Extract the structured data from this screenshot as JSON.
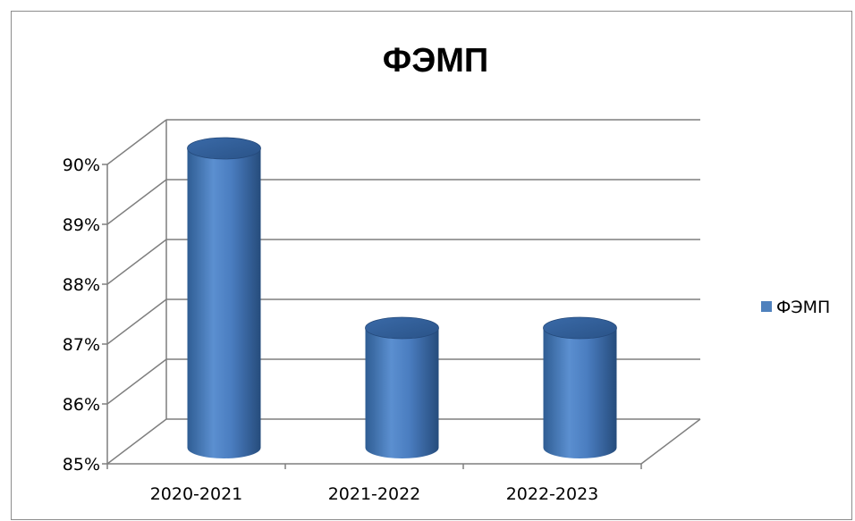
{
  "chart_data": {
    "type": "bar",
    "style": "3d-cylinder",
    "title": "ФЭМП",
    "categories": [
      "2020-2021",
      "2021-2022",
      "2022-2023"
    ],
    "series": [
      {
        "name": "ФЭМП",
        "values": [
          90,
          87,
          87
        ],
        "color": "#4F81BD"
      }
    ],
    "ylim": [
      85,
      90
    ],
    "yticks": [
      "85%",
      "86%",
      "87%",
      "88%",
      "89%",
      "90%"
    ],
    "unit": "%",
    "grid": true,
    "legend": "right"
  }
}
